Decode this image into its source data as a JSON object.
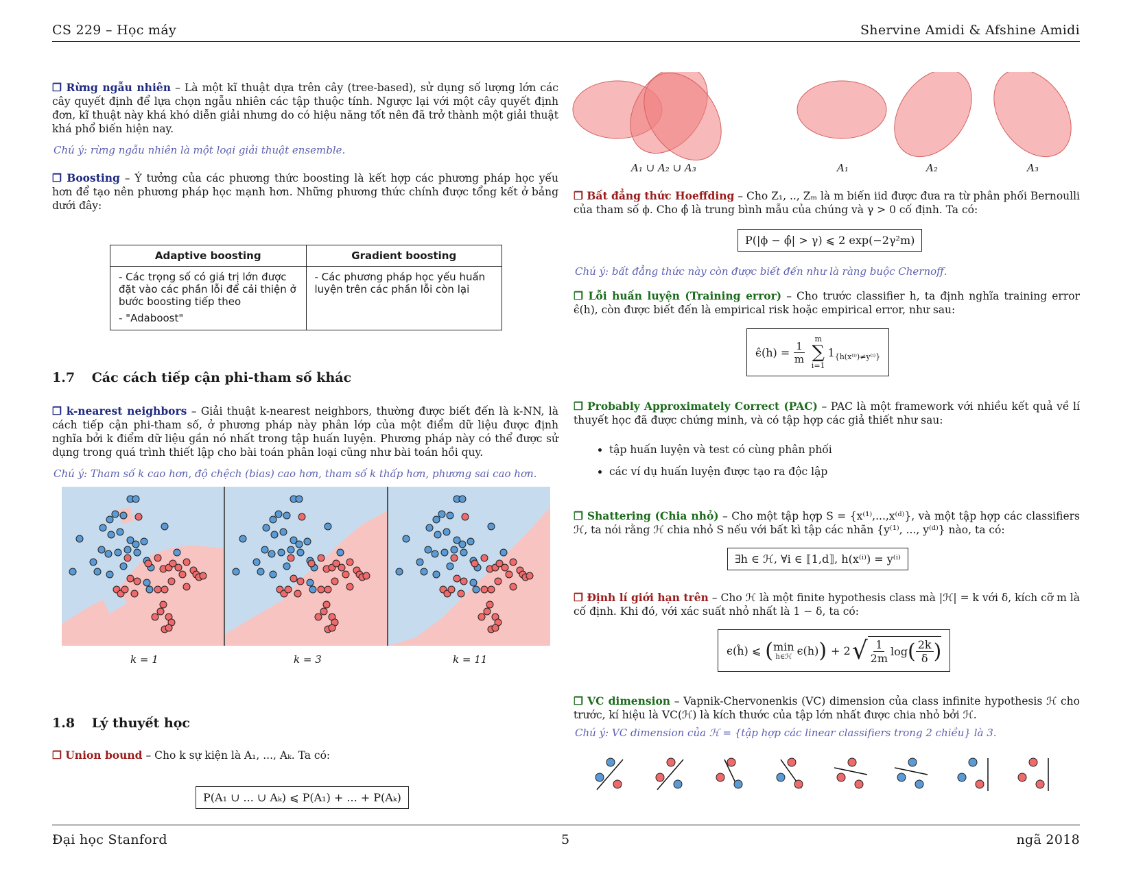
{
  "header": {
    "left": "CS 229 – Học máy",
    "right": "Shervine Amidi & Afshine Amidi"
  },
  "footer": {
    "left": "Đại học Stanford",
    "center": "5",
    "right": "ngã 2018"
  },
  "rf": {
    "title": "❐ Rừng ngẫu nhiên",
    "body": "– Là một kĩ thuật dựa trên cây (tree-based), sử dụng số lượng lớn các cây quyết định để lựa chọn ngẫu nhiên các tập thuộc tính. Ngược lại với một cây quyết định đơn, kĩ thuật này khá khó diễn giải nhưng do có hiệu năng tốt nên đã trở thành một giải thuật khá phổ biến hiện nay.",
    "note": "Chú ý: rừng ngẫu nhiên là một loại giải thuật ensemble."
  },
  "boosting": {
    "title": "❐ Boosting",
    "body": "– Ý tưởng của các phương thức boosting là kết hợp các phương pháp học yếu hơn để tạo nên phương pháp học mạnh hơn. Những phương thức chính được tổng kết ở bảng dưới đây:",
    "table": {
      "h1": "Adaptive boosting",
      "h2": "Gradient boosting",
      "c1a": "- Các trọng số có giá trị lớn được đặt vào các phần lỗi để cải thiện ở bước boosting tiếp theo",
      "c1b": "- \"Adaboost\"",
      "c2": "- Các phương pháp học yếu huấn luyện trên các phần lỗi còn lại"
    }
  },
  "sec17": {
    "num": "1.7",
    "title": "Các cách tiếp cận phi-tham số khác"
  },
  "knn": {
    "title": "❐ k-nearest neighbors",
    "body": "– Giải thuật k-nearest neighbors, thường được biết đến là k-NN, là cách tiếp cận phi-tham số, ở phương pháp này phân lớp của một điểm dữ liệu được định nghĩa bởi k điểm dữ liệu gần nó nhất trong tập huấn luyện. Phương pháp này có thể được sử dụng trong quá trình thiết lập cho bài toán phân loại cũng như bài toán hồi quy.",
    "note": "Chú ý: Tham số k cao hơn, độ chệch (bias) cao hơn, tham số k thấp hơn, phương sai cao hơn.",
    "labels": [
      "k = 1",
      "k = 3",
      "k = 11"
    ],
    "colors": {
      "blue_bg": "#c6dcee",
      "red_bg": "#f7c4c2",
      "blue_pt": "#5b9bd5",
      "red_pt": "#ef6a6a"
    }
  },
  "sec18": {
    "num": "1.8",
    "title": "Lý thuyết học"
  },
  "union": {
    "title": "❐ Union bound",
    "body": "– Cho k sự kiện là A₁, ..., Aₖ. Ta có:",
    "formula": "P(A₁ ∪ ... ∪ Aₖ) ⩽ P(A₁) + ... + P(Aₖ)"
  },
  "venn": {
    "labels": [
      "A₁ ∪ A₂ ∪ A₃",
      "A₁",
      "A₂",
      "A₃"
    ],
    "fill": "#f08080"
  },
  "hoeffding": {
    "title": "❐ Bất đẳng thức Hoeffding",
    "body": "– Cho Z₁, .., Zₘ là m biến iid được đưa ra từ phân phối Bernoulli của tham số ϕ. Cho ϕ̂ là trung bình mẫu của chúng và γ > 0 cố định. Ta có:",
    "formula": "P(|ϕ − ϕ̂| > γ) ⩽ 2 exp(−2γ²m)",
    "note": "Chú ý: bất đẳng thức này còn được biết đến như là ràng buộc Chernoff."
  },
  "training": {
    "title": "❐ Lỗi huấn luyện (Training error)",
    "body": "– Cho trước classifier h, ta định nghĩa training error ϵ̂(h), còn được biết đến là empirical risk hoặc empirical error, như sau:",
    "lhs": "ϵ̂(h) =",
    "num": "1",
    "den": "m",
    "sum": "∑",
    "sum_top": "m",
    "sum_bot": "i=1",
    "indicator": "1",
    "sub": "{h(x⁽ⁱ⁾)≠y⁽ⁱ⁾}"
  },
  "pac": {
    "title": "❐ Probably Approximately Correct (PAC)",
    "body": "– PAC là một framework với nhiều kết quả về lí thuyết học đã được chứng minh, và có tập hợp các giả thiết như sau:",
    "items": [
      "tập huấn luyện và test có cùng phân phối",
      "các ví dụ huấn luyện được tạo ra độc lập"
    ]
  },
  "shattering": {
    "title": "❐ Shattering (Chia nhỏ)",
    "body": "– Cho một tập hợp S = {x⁽¹⁾,...,x⁽ᵈ⁾}, và một tập hợp các classifiers ℋ, ta nói rằng ℋ chia nhỏ S nếu với bất kì tập các nhãn {y⁽¹⁾, ..., y⁽ᵈ⁾} nào, ta có:",
    "formula": "∃h ∈ ℋ,    ∀i ∈ ⟦1,d⟧,    h(x⁽ⁱ⁾) = y⁽ⁱ⁾"
  },
  "upper": {
    "title": "❐ Định lí giới hạn trên",
    "body": "– Cho ℋ là một finite hypothesis class mà |ℋ| = k với δ, kích cỡ m là cố định. Khi đó, với xác suất nhỏ nhất là 1 − δ, ta có:",
    "lhs": "ϵ(ĥ) ⩽",
    "min": "min",
    "min_sub": "h∈ℋ",
    "inner": "ϵ(h)",
    "plus": "+ 2",
    "f1n": "1",
    "f1d": "2m",
    "log": "log",
    "f2n": "2k",
    "f2d": "δ"
  },
  "vc": {
    "title": "❐ VC dimension",
    "body": "– Vapnik-Chervonenkis (VC) dimension của class infinite hypothesis ℋ cho trước, kí hiệu là VC(ℋ) là kích thước của tập lớn nhất được chia nhỏ bởi ℋ.",
    "note": "Chú ý: VC dimension của ℋ = {tập hợp các linear classifiers trong 2 chiều} là 3."
  }
}
